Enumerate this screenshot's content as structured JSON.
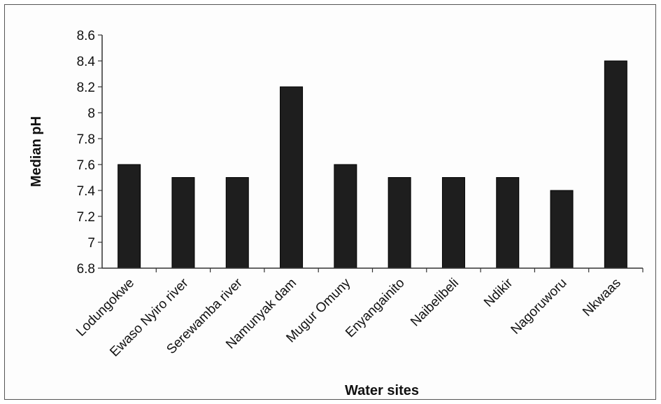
{
  "chart_data": {
    "type": "bar",
    "title": "",
    "xlabel": "Water sites",
    "ylabel": "Median pH",
    "ylim": [
      6.8,
      8.6
    ],
    "yticks": [
      "6.8",
      "7",
      "7.2",
      "7.4",
      "7.6",
      "7.8",
      "8",
      "8.2",
      "8.4",
      "8.6"
    ],
    "grid": false,
    "legend": "none",
    "bar_color": "#1e1e1e",
    "categories": [
      "Lodungokwe",
      "Ewaso Nyiro river",
      "Serewamba river",
      "Namunyak dam",
      "Mugur Omuny",
      "Enyangainito",
      "Naibelibeli",
      "Ndikir",
      "Nagoruworu",
      "Nkwaas"
    ],
    "values": [
      7.6,
      7.5,
      7.5,
      8.2,
      7.6,
      7.5,
      7.5,
      7.5,
      7.4,
      8.4
    ]
  }
}
